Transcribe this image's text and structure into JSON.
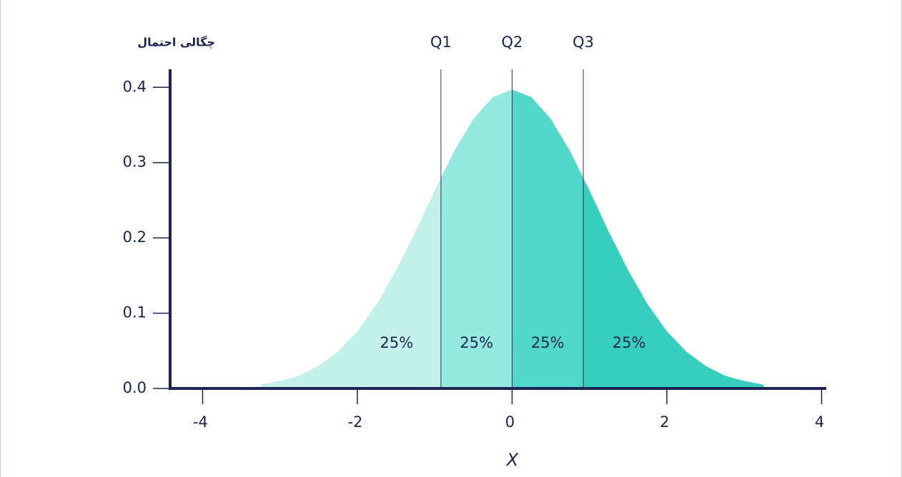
{
  "chart_data": {
    "type": "area",
    "y_label": "چگالی احتمال",
    "x_label": "X",
    "x": [
      -3.25,
      -3,
      -2.75,
      -2.5,
      -2.25,
      -2,
      -1.75,
      -1.5,
      -1.25,
      -1,
      -0.75,
      -0.5,
      -0.25,
      0,
      0.25,
      0.5,
      0.75,
      1,
      1.25,
      1.5,
      1.75,
      2,
      2.25,
      2.5,
      2.75,
      3,
      3.25
    ],
    "values": [
      0.005,
      0.01,
      0.017,
      0.03,
      0.049,
      0.076,
      0.112,
      0.157,
      0.208,
      0.263,
      0.315,
      0.358,
      0.387,
      0.397,
      0.387,
      0.358,
      0.315,
      0.263,
      0.208,
      0.157,
      0.112,
      0.076,
      0.049,
      0.03,
      0.017,
      0.01,
      0.005
    ],
    "xlim": [
      -4.42,
      4.06
    ],
    "ylim": [
      0,
      0.424
    ],
    "xticks": [
      -4,
      -2,
      0,
      2,
      4
    ],
    "yticks": [
      {
        "value": 0,
        "label": "0.0"
      },
      0.1,
      0.2,
      0.3,
      0.4
    ],
    "quartiles": [
      {
        "label": "Q1",
        "value": -0.92
      },
      {
        "label": "Q2",
        "value": 0
      },
      {
        "label": "Q3",
        "value": 0.92
      }
    ],
    "regions": {
      "values": [
        25,
        25,
        25,
        25
      ],
      "value_labels": [
        "25%",
        "25%",
        "25%",
        "25%"
      ],
      "colors": [
        "#c3f1ea",
        "#93e9de",
        "#4fd8c8",
        "#36cfbd"
      ]
    }
  }
}
